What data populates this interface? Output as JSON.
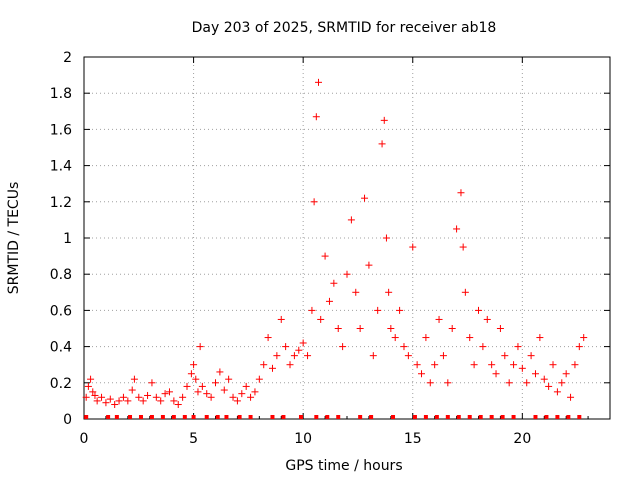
{
  "chart_data": {
    "type": "scatter",
    "title": "Day 203 of 2025, SRMTID for receiver ab18",
    "xlabel": "GPS time / hours",
    "ylabel": "SRMTID / TECUs",
    "xlim": [
      0,
      24
    ],
    "ylim": [
      0,
      2
    ],
    "xticks": [
      0,
      5,
      10,
      15,
      20
    ],
    "xtick_labels": [
      "0",
      "5",
      "10",
      "15",
      "20"
    ],
    "yticks": [
      0,
      0.2,
      0.4,
      0.6,
      0.8,
      1,
      1.2,
      1.4,
      1.6,
      1.8,
      2
    ],
    "ytick_labels": [
      "0",
      "0.2",
      "0.4",
      "0.6",
      "0.8",
      "1",
      "1.2",
      "1.4",
      "1.6",
      "1.8",
      "2"
    ],
    "grid": true,
    "marker": "+",
    "marker_color": "#ff0000",
    "gap_marker": "square",
    "series": [
      {
        "name": "SRMTID",
        "x": [
          0.1,
          0.2,
          0.3,
          0.4,
          0.5,
          0.6,
          0.8,
          1.0,
          1.2,
          1.4,
          1.6,
          1.8,
          2.0,
          2.2,
          2.3,
          2.5,
          2.7,
          2.9,
          3.1,
          3.3,
          3.5,
          3.7,
          3.9,
          4.1,
          4.3,
          4.5,
          4.7,
          4.9,
          5.0,
          5.1,
          5.2,
          5.3,
          5.4,
          5.6,
          5.8,
          6.0,
          6.2,
          6.4,
          6.6,
          6.8,
          7.0,
          7.2,
          7.4,
          7.6,
          7.8,
          8.0,
          8.2,
          8.4,
          8.6,
          8.8,
          9.0,
          9.2,
          9.4,
          9.6,
          9.8,
          10.0,
          10.2,
          10.4,
          10.5,
          10.6,
          10.7,
          10.8,
          11.0,
          11.2,
          11.4,
          11.6,
          11.8,
          12.0,
          12.2,
          12.4,
          12.6,
          12.8,
          13.0,
          13.2,
          13.4,
          13.6,
          13.7,
          13.8,
          13.9,
          14.0,
          14.2,
          14.4,
          14.6,
          14.8,
          15.0,
          15.2,
          15.4,
          15.6,
          15.8,
          16.0,
          16.2,
          16.4,
          16.6,
          16.8,
          17.0,
          17.2,
          17.3,
          17.4,
          17.6,
          17.8,
          18.0,
          18.2,
          18.4,
          18.6,
          18.8,
          19.0,
          19.2,
          19.4,
          19.6,
          19.8,
          20.0,
          20.2,
          20.4,
          20.6,
          20.8,
          21.0,
          21.2,
          21.4,
          21.6,
          21.8,
          22.0,
          22.2,
          22.4,
          22.6,
          22.8
        ],
        "values": [
          0.12,
          0.18,
          0.22,
          0.15,
          0.13,
          0.1,
          0.12,
          0.09,
          0.11,
          0.08,
          0.1,
          0.12,
          0.1,
          0.16,
          0.22,
          0.12,
          0.1,
          0.13,
          0.2,
          0.12,
          0.1,
          0.14,
          0.15,
          0.1,
          0.08,
          0.12,
          0.18,
          0.25,
          0.3,
          0.22,
          0.15,
          0.4,
          0.18,
          0.14,
          0.12,
          0.2,
          0.26,
          0.16,
          0.22,
          0.12,
          0.1,
          0.14,
          0.18,
          0.12,
          0.15,
          0.22,
          0.3,
          0.45,
          0.28,
          0.35,
          0.55,
          0.4,
          0.3,
          0.35,
          0.38,
          0.42,
          0.35,
          0.6,
          1.2,
          1.67,
          1.86,
          0.55,
          0.9,
          0.65,
          0.75,
          0.5,
          0.4,
          0.8,
          1.1,
          0.7,
          0.5,
          1.22,
          0.85,
          0.35,
          0.6,
          1.52,
          1.65,
          1.0,
          0.7,
          0.5,
          0.45,
          0.6,
          0.4,
          0.35,
          0.95,
          0.3,
          0.25,
          0.45,
          0.2,
          0.3,
          0.55,
          0.35,
          0.2,
          0.5,
          1.05,
          1.25,
          0.95,
          0.7,
          0.45,
          0.3,
          0.6,
          0.4,
          0.55,
          0.3,
          0.25,
          0.5,
          0.35,
          0.2,
          0.3,
          0.4,
          0.28,
          0.2,
          0.35,
          0.25,
          0.45,
          0.22,
          0.18,
          0.3,
          0.15,
          0.2,
          0.25,
          0.12,
          0.3,
          0.4,
          0.45
        ]
      }
    ],
    "gaps_x": [
      0.1,
      1.1,
      1.5,
      2.1,
      2.6,
      3.1,
      3.6,
      4.1,
      4.6,
      5.0,
      5.6,
      6.1,
      6.5,
      7.1,
      7.6,
      8.6,
      9.1,
      9.9,
      10.6,
      11.1,
      11.6,
      12.6,
      13.1,
      14.1,
      15.1,
      15.6,
      16.1,
      16.6,
      17.1,
      17.6,
      18.1,
      18.6,
      19.1,
      19.6,
      20.6,
      21.1,
      21.6,
      22.1,
      22.6
    ]
  }
}
